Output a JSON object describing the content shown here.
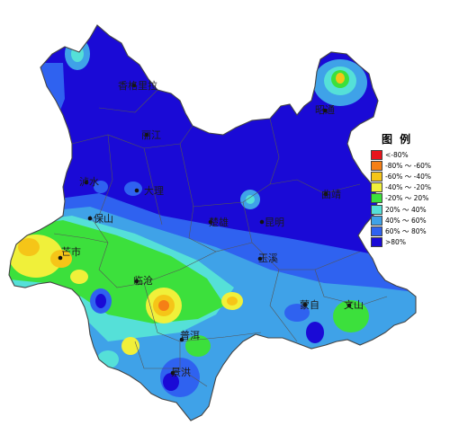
{
  "map": {
    "cities": [
      {
        "id": "diqing",
        "name": "香格里拉"
      },
      {
        "id": "lijiang",
        "name": "丽江"
      },
      {
        "id": "zhaotong",
        "name": "昭通"
      },
      {
        "id": "nujiang",
        "name": "泸水"
      },
      {
        "id": "dali",
        "name": "大理"
      },
      {
        "id": "baoshan",
        "name": "保山"
      },
      {
        "id": "chuxiong",
        "name": "楚雄"
      },
      {
        "id": "kunming",
        "name": "昆明"
      },
      {
        "id": "qujing",
        "name": "曲靖"
      },
      {
        "id": "dehong",
        "name": "芒市"
      },
      {
        "id": "lincang",
        "name": "临沧"
      },
      {
        "id": "yuxi",
        "name": "玉溪"
      },
      {
        "id": "honghe",
        "name": "蒙自"
      },
      {
        "id": "wenshan",
        "name": "文山"
      },
      {
        "id": "puer",
        "name": "普洱"
      },
      {
        "id": "xishuangbanna",
        "name": "景洪"
      }
    ]
  },
  "legend": {
    "title": "图 例",
    "items": [
      {
        "label": "<-80%",
        "color": "#e8141c"
      },
      {
        "label": "-80% ～ -60%",
        "color": "#f57f16"
      },
      {
        "label": "-60% ～ -40%",
        "color": "#f5c518"
      },
      {
        "label": "-40% ～ -20%",
        "color": "#f0f03a"
      },
      {
        "label": "-20% ～ 20%",
        "color": "#3ce03c"
      },
      {
        "label": "20% ～ 40%",
        "color": "#55e0d8"
      },
      {
        "label": "40% ～ 60%",
        "color": "#3fa2e8"
      },
      {
        "label": "60% ～ 80%",
        "color": "#2f62f0"
      },
      {
        "label": ">80%",
        "color": "#1a0ad6"
      }
    ]
  }
}
